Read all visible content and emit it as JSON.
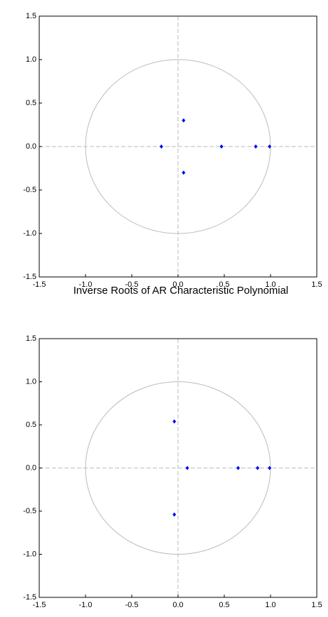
{
  "chart_data": [
    {
      "type": "scatter",
      "x": [
        -0.18,
        0.06,
        0.06,
        0.47,
        0.84,
        0.99
      ],
      "values": [
        0,
        0.3,
        -0.3,
        0,
        0,
        0
      ],
      "color": "#0000ff",
      "xlim": [
        -1.5,
        1.5
      ],
      "ylim": [
        -1.5,
        1.5
      ],
      "xticks": [
        -1.5,
        {
          "value": -1,
          "label": "-1.0"
        },
        -0.5,
        {
          "value": 0,
          "label": "0.0"
        },
        0.5,
        {
          "value": 1,
          "label": "1.0"
        },
        1.5
      ],
      "yticks": [
        -1.5,
        {
          "value": -1,
          "label": "-1.0"
        },
        -0.5,
        {
          "value": 0,
          "label": "0.0"
        },
        0.5,
        {
          "value": 1,
          "label": "1.0"
        },
        1.5
      ],
      "unit_circle": true,
      "zero_lines": true
    },
    {
      "type": "scatter",
      "title": "Inverse Roots of AR Characteristic Polynomial",
      "x": [
        -0.04,
        -0.04,
        0.1,
        0.65,
        0.86,
        0.99
      ],
      "values": [
        0.54,
        -0.54,
        0,
        0,
        0,
        0
      ],
      "color": "#0000ff",
      "xlim": [
        -1.5,
        1.5
      ],
      "ylim": [
        -1.5,
        1.5
      ],
      "xticks": [
        -1.5,
        {
          "value": -1,
          "label": "-1.0"
        },
        -0.5,
        {
          "value": 0,
          "label": "0.0"
        },
        0.5,
        {
          "value": 1,
          "label": "1.0"
        },
        1.5
      ],
      "yticks": [
        -1.5,
        {
          "value": -1,
          "label": "-1.0"
        },
        -0.5,
        {
          "value": 0,
          "label": "0.0"
        },
        0.5,
        {
          "value": 1,
          "label": "1.0"
        },
        1.5
      ],
      "unit_circle": true,
      "zero_lines": true
    }
  ]
}
